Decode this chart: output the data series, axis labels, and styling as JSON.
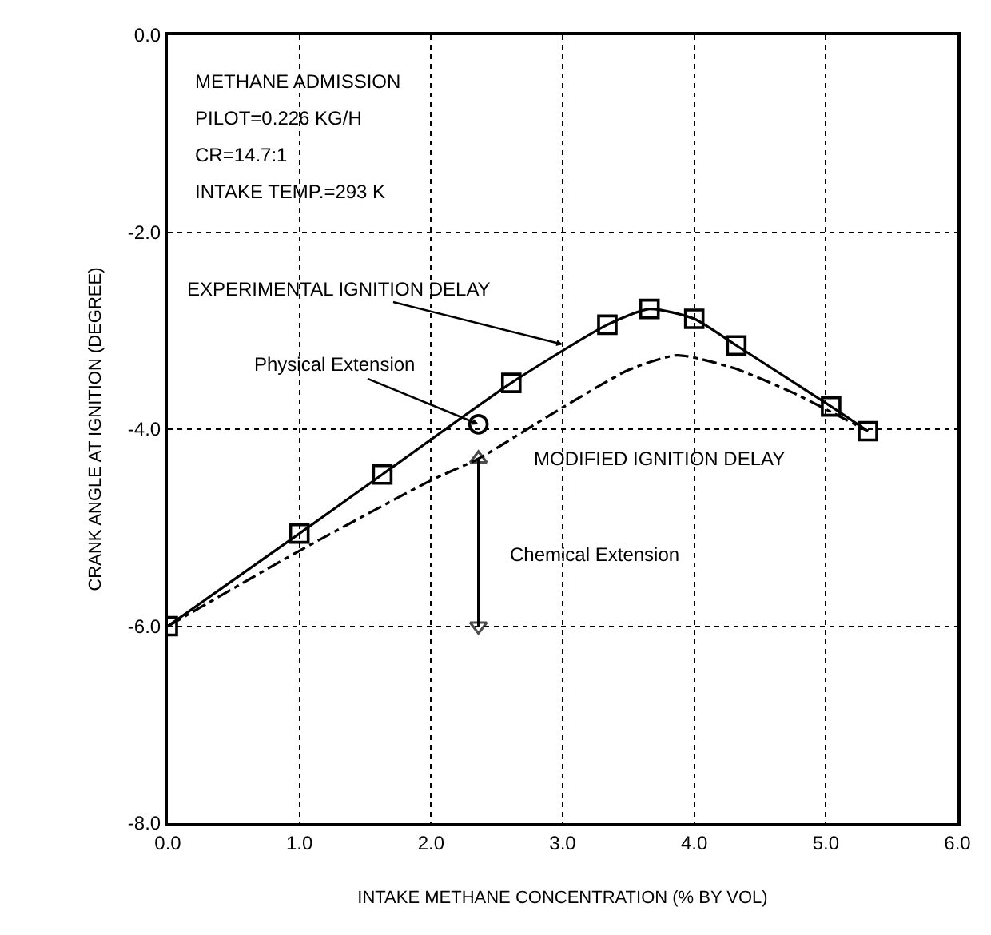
{
  "chart_data": {
    "type": "line",
    "xlabel": "INTAKE METHANE CONCENTRATION (% BY VOL)",
    "ylabel": "CRANK ANGLE AT IGNITION (DEGREE)",
    "xlim": [
      0,
      6
    ],
    "ylim": [
      -8,
      0
    ],
    "xticks": [
      {
        "value": 0,
        "label": "0.0"
      },
      {
        "value": 1,
        "label": "1.0"
      },
      {
        "value": 2,
        "label": "2.0"
      },
      {
        "value": 3,
        "label": "3.0"
      },
      {
        "value": 4,
        "label": "4.0"
      },
      {
        "value": 5,
        "label": "5.0"
      },
      {
        "value": 6,
        "label": "6.0"
      }
    ],
    "yticks": [
      {
        "value": 0,
        "label": "0.0"
      },
      {
        "value": -2,
        "label": "-2.0"
      },
      {
        "value": -4,
        "label": "-4.0"
      },
      {
        "value": -6,
        "label": "-6.0"
      },
      {
        "value": -8,
        "label": "-8.0"
      }
    ],
    "grid": true,
    "series": [
      {
        "color": "#000000",
        "marker": "square",
        "line_style": "solid",
        "x": [
          0,
          1.0,
          1.63,
          2.61,
          3.34,
          3.66,
          4.0,
          4.32,
          5.04,
          5.32
        ],
        "values": [
          -6.0,
          -5.06,
          -4.46,
          -3.53,
          -2.94,
          -2.78,
          -2.88,
          -3.15,
          -3.77,
          -4.02
        ]
      },
      {
        "color": "#000000",
        "marker": "none",
        "line_style": "dashdot",
        "x": [
          0,
          0.98,
          2.0,
          2.36,
          2.95,
          3.5,
          3.87,
          4.3,
          4.75,
          5.32
        ],
        "values": [
          -6.0,
          -5.25,
          -4.52,
          -4.3,
          -3.82,
          -3.4,
          -3.25,
          -3.38,
          -3.63,
          -4.02
        ]
      },
      {
        "color": "#000000",
        "marker": "circle",
        "line_style": "solid",
        "x": [
          2.36
        ],
        "values": [
          -3.95
        ]
      },
      {
        "color": "#000000",
        "marker": "triangle",
        "line_style": "solid",
        "x": [
          2.36,
          2.36
        ],
        "values": [
          -6.0,
          -4.3
        ]
      }
    ],
    "annotations": [
      "METHANE ADMISSION",
      "PILOT=0.226 KG/H",
      "CR=14.7:1",
      "INTAKE TEMP.=293 K",
      {
        "text": "EXPERIMENTAL IGNITION DELAY",
        "x": 3.0,
        "y": -3.14
      },
      {
        "text": "Physical Extension",
        "x": 2.36,
        "y": -3.95
      },
      "MODIFIED IGNITION DELAY",
      "Chemical Extension"
    ]
  }
}
